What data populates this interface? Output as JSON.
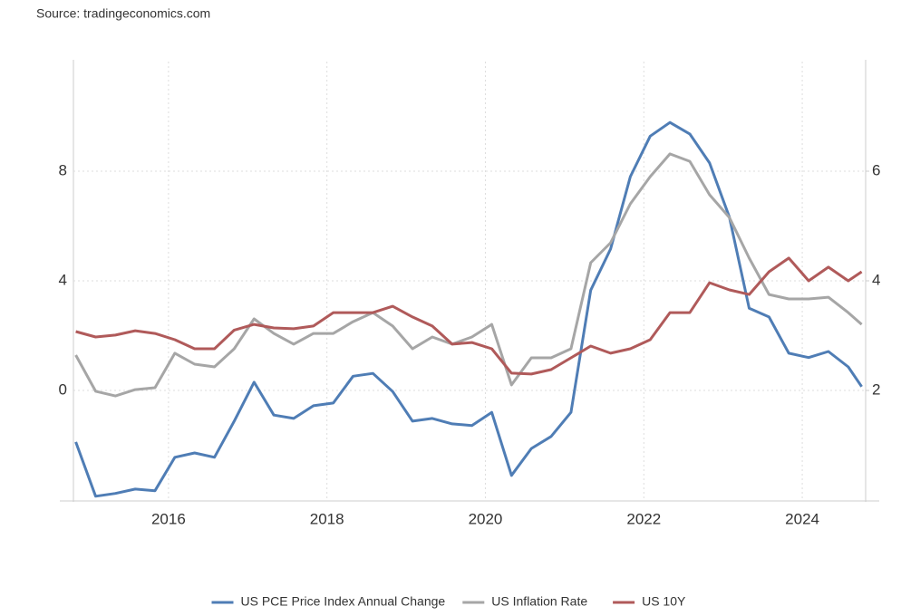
{
  "source": "Source: tradingeconomics.com",
  "chart_data": {
    "type": "line",
    "x": [
      2014.83,
      2015.08,
      2015.33,
      2015.58,
      2015.83,
      2016.08,
      2016.33,
      2016.58,
      2016.83,
      2017.08,
      2017.33,
      2017.58,
      2017.83,
      2018.08,
      2018.33,
      2018.58,
      2018.83,
      2019.08,
      2019.33,
      2019.58,
      2019.83,
      2020.08,
      2020.33,
      2020.58,
      2020.83,
      2021.08,
      2021.33,
      2021.58,
      2021.83,
      2022.08,
      2022.33,
      2022.58,
      2022.83,
      2023.08,
      2023.33,
      2023.58,
      2023.83,
      2024.08,
      2024.33,
      2024.58,
      2024.75
    ],
    "xlim": [
      2014.8,
      2024.8
    ],
    "xticks": [
      2016,
      2018,
      2020,
      2022,
      2024
    ],
    "ylim": [
      -4,
      12
    ],
    "yticks": [
      0,
      4,
      8
    ],
    "y2lim": [
      0,
      8
    ],
    "y2ticks": [
      2,
      4,
      6
    ],
    "grid": true,
    "legend": "bottom",
    "series": [
      {
        "name": "US PCE Price Index Annual Change",
        "color": "#4f7db5",
        "axis": "y2",
        "values": [
          1.06,
          0.07,
          0.12,
          0.2,
          0.17,
          0.78,
          0.86,
          0.78,
          1.44,
          2.15,
          1.55,
          1.49,
          1.72,
          1.77,
          2.26,
          2.31,
          1.98,
          1.44,
          1.49,
          1.39,
          1.36,
          1.6,
          0.45,
          0.94,
          1.16,
          1.6,
          3.83,
          4.58,
          5.9,
          6.64,
          6.89,
          6.68,
          6.15,
          5.16,
          3.5,
          3.34,
          2.68,
          2.6,
          2.71,
          2.43,
          2.07
        ]
      },
      {
        "name": "US Inflation Rate",
        "color": "#a6a6a6",
        "values": [
          1.29,
          -0.03,
          -0.2,
          0.03,
          0.1,
          1.36,
          0.96,
          0.86,
          1.52,
          2.61,
          2.08,
          1.69,
          2.08,
          2.08,
          2.51,
          2.84,
          2.35,
          1.52,
          1.95,
          1.69,
          1.95,
          2.41,
          0.2,
          1.19,
          1.19,
          1.52,
          4.66,
          5.39,
          6.81,
          7.8,
          8.63,
          8.36,
          7.14,
          6.31,
          4.83,
          3.5,
          3.34,
          3.34,
          3.4,
          2.84,
          2.41
        ]
      },
      {
        "name": "US 10Y",
        "color": "#b05a5a",
        "values": [
          2.15,
          1.95,
          2.02,
          2.18,
          2.08,
          1.85,
          1.52,
          1.52,
          2.2,
          2.41,
          2.28,
          2.25,
          2.35,
          2.84,
          2.84,
          2.84,
          3.07,
          2.68,
          2.35,
          1.69,
          1.75,
          1.52,
          0.63,
          0.6,
          0.76,
          1.19,
          1.62,
          1.36,
          1.52,
          1.85,
          2.84,
          2.84,
          3.93,
          3.67,
          3.5,
          4.33,
          4.83,
          4.0,
          4.5,
          4.0,
          4.33
        ]
      }
    ]
  }
}
